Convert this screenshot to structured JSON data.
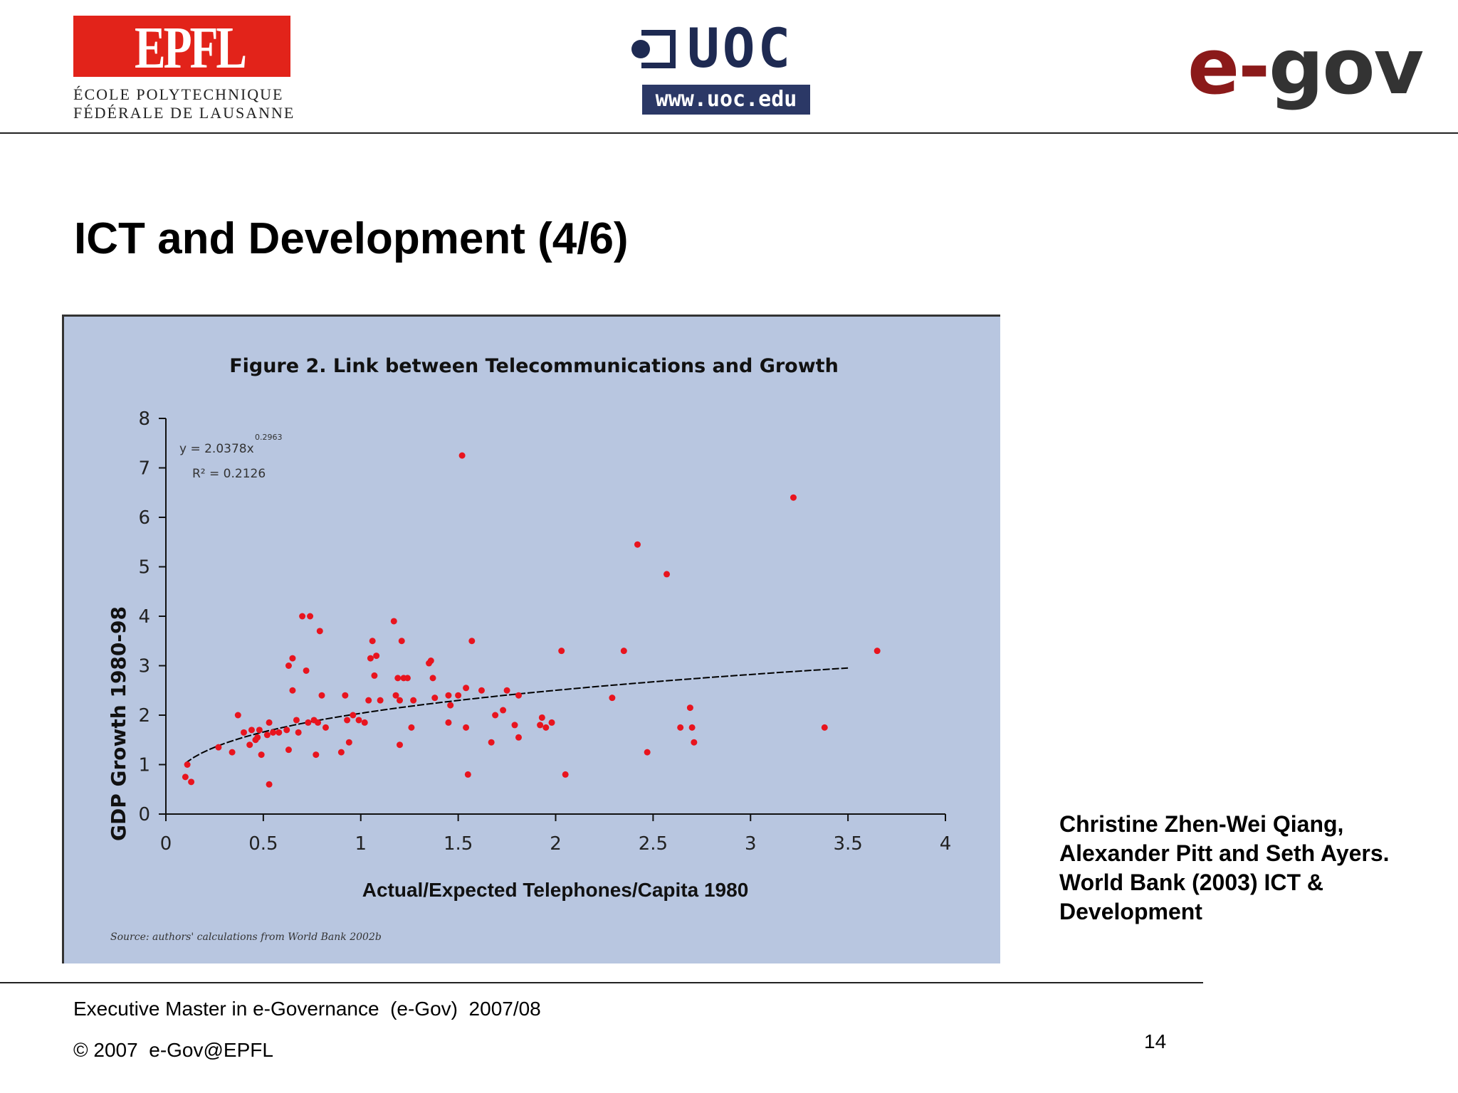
{
  "header": {
    "epfl": {
      "mark": "EPFL",
      "line1": "ÉCOLE POLYTECHNIQUE",
      "line2": "FÉDÉRALE DE LAUSANNE"
    },
    "uoc": {
      "name": "UOC",
      "url": "www.uoc.edu"
    },
    "egov": {
      "prefix": "e-",
      "suffix": "gov"
    }
  },
  "slide": {
    "title": "ICT and Development (4/6)",
    "citation": "Christine Zhen-Wei Qiang, Alexander Pitt and Seth Ayers. World Bank (2003) ICT & Development"
  },
  "footer": {
    "course": "Executive Master in e-Governance  (e-Gov)  2007/08",
    "copyright": "© 2007  e-Gov@EPFL",
    "page": "14"
  },
  "colors": {
    "chart_bg": "#b8c6e0",
    "points": "#e8141e",
    "trend": "#000000",
    "egov_e": "#8b1a1a",
    "uoc": "#1e2a52"
  },
  "chart_data": {
    "type": "scatter",
    "title": "Figure 2. Link between Telecommunications and Growth",
    "xlabel": "Actual/Expected Telephones/Capita 1980",
    "ylabel": "GDP Growth 1980-98",
    "xlim": [
      0,
      4
    ],
    "ylim": [
      0,
      8
    ],
    "xticks": [
      "0",
      "0.5",
      "1",
      "1.5",
      "2",
      "2.5",
      "3",
      "3.5",
      "4"
    ],
    "yticks": [
      "0",
      "1",
      "2",
      "3",
      "4",
      "5",
      "6",
      "7",
      "8"
    ],
    "equation": "y = 2.0378x",
    "exponent": "0.2963",
    "r_squared": "R² = 0.2126",
    "source": "Source: authors' calculations from World Bank 2002b",
    "trendline": {
      "type": "power",
      "a": 2.0378,
      "b": 0.2963,
      "x_range": [
        0.1,
        3.5
      ]
    },
    "points": [
      [
        0.1,
        0.75
      ],
      [
        0.11,
        1.0
      ],
      [
        0.13,
        0.65
      ],
      [
        0.27,
        1.35
      ],
      [
        0.34,
        1.25
      ],
      [
        0.37,
        2.0
      ],
      [
        0.4,
        1.65
      ],
      [
        0.43,
        1.4
      ],
      [
        0.44,
        1.7
      ],
      [
        0.46,
        1.5
      ],
      [
        0.47,
        1.55
      ],
      [
        0.48,
        1.7
      ],
      [
        0.49,
        1.2
      ],
      [
        0.52,
        1.6
      ],
      [
        0.53,
        1.85
      ],
      [
        0.53,
        0.6
      ],
      [
        0.55,
        1.65
      ],
      [
        0.58,
        1.65
      ],
      [
        0.62,
        1.7
      ],
      [
        0.63,
        1.3
      ],
      [
        0.63,
        3.0
      ],
      [
        0.65,
        3.15
      ],
      [
        0.65,
        2.5
      ],
      [
        0.67,
        1.9
      ],
      [
        0.68,
        1.65
      ],
      [
        0.7,
        4.0
      ],
      [
        0.72,
        2.9
      ],
      [
        0.73,
        1.85
      ],
      [
        0.74,
        4.0
      ],
      [
        0.76,
        1.9
      ],
      [
        0.77,
        1.2
      ],
      [
        0.78,
        1.85
      ],
      [
        0.79,
        3.7
      ],
      [
        0.8,
        2.4
      ],
      [
        0.82,
        1.75
      ],
      [
        0.9,
        1.25
      ],
      [
        0.92,
        2.4
      ],
      [
        0.93,
        1.9
      ],
      [
        0.94,
        1.45
      ],
      [
        0.96,
        2.0
      ],
      [
        0.99,
        1.9
      ],
      [
        1.02,
        1.85
      ],
      [
        1.04,
        2.3
      ],
      [
        1.05,
        3.15
      ],
      [
        1.06,
        3.5
      ],
      [
        1.07,
        2.8
      ],
      [
        1.08,
        3.2
      ],
      [
        1.1,
        2.3
      ],
      [
        1.17,
        3.9
      ],
      [
        1.18,
        2.4
      ],
      [
        1.19,
        2.75
      ],
      [
        1.2,
        2.3
      ],
      [
        1.2,
        1.4
      ],
      [
        1.21,
        3.5
      ],
      [
        1.22,
        2.75
      ],
      [
        1.24,
        2.75
      ],
      [
        1.26,
        1.75
      ],
      [
        1.27,
        2.3
      ],
      [
        1.35,
        3.05
      ],
      [
        1.36,
        3.1
      ],
      [
        1.37,
        2.75
      ],
      [
        1.38,
        2.35
      ],
      [
        1.45,
        2.4
      ],
      [
        1.45,
        1.85
      ],
      [
        1.46,
        2.2
      ],
      [
        1.5,
        2.4
      ],
      [
        1.52,
        7.25
      ],
      [
        1.54,
        2.55
      ],
      [
        1.54,
        1.75
      ],
      [
        1.55,
        0.8
      ],
      [
        1.57,
        3.5
      ],
      [
        1.62,
        2.5
      ],
      [
        1.67,
        1.45
      ],
      [
        1.69,
        2.0
      ],
      [
        1.73,
        2.1
      ],
      [
        1.75,
        2.5
      ],
      [
        1.79,
        1.8
      ],
      [
        1.81,
        2.4
      ],
      [
        1.81,
        1.55
      ],
      [
        1.92,
        1.8
      ],
      [
        1.93,
        1.95
      ],
      [
        1.95,
        1.75
      ],
      [
        1.98,
        1.85
      ],
      [
        2.03,
        3.3
      ],
      [
        2.05,
        0.8
      ],
      [
        2.29,
        2.35
      ],
      [
        2.35,
        3.3
      ],
      [
        2.42,
        5.45
      ],
      [
        2.47,
        1.25
      ],
      [
        2.57,
        4.85
      ],
      [
        2.64,
        1.75
      ],
      [
        2.69,
        2.15
      ],
      [
        2.7,
        1.75
      ],
      [
        2.71,
        1.45
      ],
      [
        3.22,
        6.4
      ],
      [
        3.38,
        1.75
      ],
      [
        3.65,
        3.3
      ]
    ]
  }
}
